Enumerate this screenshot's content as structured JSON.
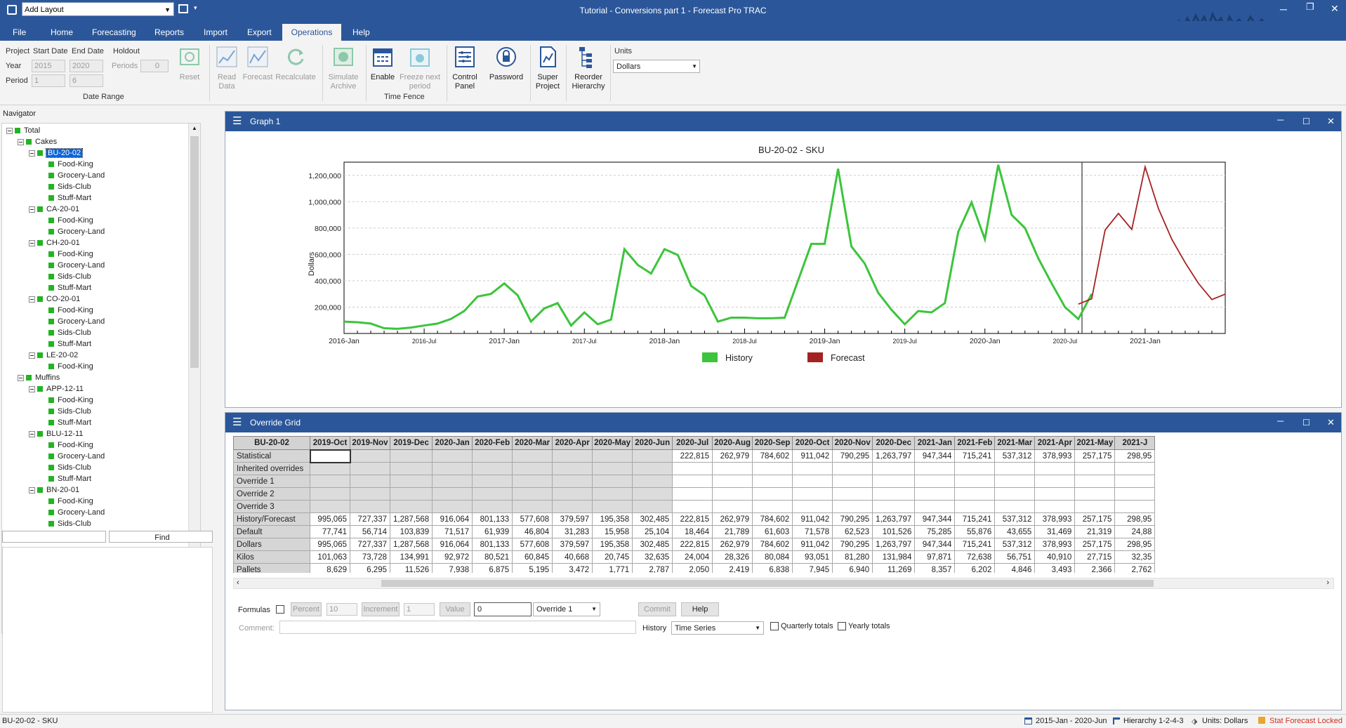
{
  "titlebar": {
    "layout_select": "Add Layout",
    "title": "Tutorial - Conversions part 1 - Forecast Pro TRAC"
  },
  "tabs": [
    "File",
    "Home",
    "Forecasting",
    "Reports",
    "Import",
    "Export",
    "Operations",
    "Help"
  ],
  "ribbon": {
    "project": "Project",
    "start_date": "Start Date",
    "end_date": "End Date",
    "holdout": "Holdout",
    "year": "Year",
    "period": "Period",
    "start_year": "2015",
    "end_year": "2020",
    "start_period": "1",
    "end_period": "6",
    "periods": "Periods",
    "periods_value": "0",
    "date_range": "Date Range",
    "time_fence": "Time Fence",
    "reset": "Reset",
    "read": "Read",
    "data": "Data",
    "forecast": "Forecast",
    "recalculate": "Recalculate",
    "simulate": "Simulate",
    "archive": "Archive",
    "enable": "Enable",
    "freeze": "Freeze next",
    "period_lbl": "period",
    "control": "Control",
    "panel": "Panel",
    "password": "Password",
    "super": "Super",
    "project2": "Project",
    "reorder": "Reorder",
    "hierarchy": "Hierarchy",
    "units": "Units",
    "units_value": "Dollars"
  },
  "navigator": {
    "title": "Navigator",
    "find": "Find",
    "nodes": [
      {
        "label": "Total",
        "level": 0,
        "exp": true
      },
      {
        "label": "Cakes",
        "level": 1,
        "exp": true
      },
      {
        "label": "BU-20-02",
        "level": 2,
        "exp": true,
        "sel": true
      },
      {
        "label": "Food-King",
        "level": 3
      },
      {
        "label": "Grocery-Land",
        "level": 3
      },
      {
        "label": "Sids-Club",
        "level": 3
      },
      {
        "label": "Stuff-Mart",
        "level": 3
      },
      {
        "label": "CA-20-01",
        "level": 2,
        "exp": true
      },
      {
        "label": "Food-King",
        "level": 3
      },
      {
        "label": "Grocery-Land",
        "level": 3
      },
      {
        "label": "CH-20-01",
        "level": 2,
        "exp": true
      },
      {
        "label": "Food-King",
        "level": 3
      },
      {
        "label": "Grocery-Land",
        "level": 3
      },
      {
        "label": "Sids-Club",
        "level": 3
      },
      {
        "label": "Stuff-Mart",
        "level": 3
      },
      {
        "label": "CO-20-01",
        "level": 2,
        "exp": true
      },
      {
        "label": "Food-King",
        "level": 3
      },
      {
        "label": "Grocery-Land",
        "level": 3
      },
      {
        "label": "Sids-Club",
        "level": 3
      },
      {
        "label": "Stuff-Mart",
        "level": 3
      },
      {
        "label": "LE-20-02",
        "level": 2,
        "exp": true
      },
      {
        "label": "Food-King",
        "level": 3
      },
      {
        "label": "Muffins",
        "level": 1,
        "exp": true
      },
      {
        "label": "APP-12-11",
        "level": 2,
        "exp": true
      },
      {
        "label": "Food-King",
        "level": 3
      },
      {
        "label": "Sids-Club",
        "level": 3
      },
      {
        "label": "Stuff-Mart",
        "level": 3
      },
      {
        "label": "BLU-12-11",
        "level": 2,
        "exp": true
      },
      {
        "label": "Food-King",
        "level": 3
      },
      {
        "label": "Grocery-Land",
        "level": 3
      },
      {
        "label": "Sids-Club",
        "level": 3
      },
      {
        "label": "Stuff-Mart",
        "level": 3
      },
      {
        "label": "BN-20-01",
        "level": 2,
        "exp": true
      },
      {
        "label": "Food-King",
        "level": 3
      },
      {
        "label": "Grocery-Land",
        "level": 3
      },
      {
        "label": "Sids-Club",
        "level": 3
      }
    ]
  },
  "graph": {
    "panel_title": "Graph 1"
  },
  "chart_data": {
    "type": "line",
    "title": "BU-20-02 - SKU",
    "ylabel": "Dollars",
    "ylim": [
      0,
      1300000
    ],
    "yticks": [
      "200,000",
      "400,000",
      "600,000",
      "800,000",
      "1,000,000",
      "1,200,000"
    ],
    "xticks": [
      "2016-Jan",
      "2016-Jul",
      "2017-Jan",
      "2017-Jul",
      "2018-Jan",
      "2018-Jul",
      "2019-Jan",
      "2019-Jul",
      "2020-Jan",
      "2020-Jul",
      "2021-Jan"
    ],
    "legend": [
      "History",
      "Forecast"
    ],
    "colors": {
      "history": "#3cc43c",
      "forecast": "#a52222"
    },
    "series": [
      {
        "name": "History",
        "start": "2016-Jan",
        "values": [
          90000,
          85000,
          75000,
          40000,
          35000,
          45000,
          60000,
          75000,
          110000,
          170000,
          280000,
          300000,
          380000,
          290000,
          90000,
          190000,
          230000,
          60000,
          160000,
          70000,
          105000,
          640000,
          520000,
          455000,
          640000,
          595000,
          360000,
          290000,
          90000,
          120000,
          120000,
          115000,
          115000,
          120000,
          400000,
          680000,
          680000,
          1250000,
          660000,
          530000,
          310000,
          180000,
          70000,
          170000,
          160000,
          230000,
          770000,
          995000,
          715000,
          1280000,
          900000,
          800000,
          570000,
          380000,
          200000,
          110000,
          300000
        ]
      },
      {
        "name": "Forecast",
        "start": "2020-Jul",
        "values": [
          222815,
          262979,
          784602,
          911042,
          790295,
          1263797,
          947344,
          715241,
          537312,
          378993,
          257175,
          298950
        ]
      }
    ]
  },
  "override": {
    "panel_title": "Override Grid",
    "corner": "BU-20-02",
    "columns": [
      "2019-Oct",
      "2019-Nov",
      "2019-Dec",
      "2020-Jan",
      "2020-Feb",
      "2020-Mar",
      "2020-Apr",
      "2020-May",
      "2020-Jun",
      "2020-Jul",
      "2020-Aug",
      "2020-Sep",
      "2020-Oct",
      "2020-Nov",
      "2020-Dec",
      "2021-Jan",
      "2021-Feb",
      "2021-Mar",
      "2021-Apr",
      "2021-May",
      "2021-J"
    ],
    "rows": [
      {
        "label": "Statistical",
        "cells": [
          "",
          "",
          "",
          "",
          "",
          "",
          "",
          "",
          "",
          "222,815",
          "262,979",
          "784,602",
          "911,042",
          "790,295",
          "1,263,797",
          "947,344",
          "715,241",
          "537,312",
          "378,993",
          "257,175",
          "298,95"
        ]
      },
      {
        "label": "Inherited overrides",
        "cells": [
          "",
          "",
          "",
          "",
          "",
          "",
          "",
          "",
          "",
          "",
          "",
          "",
          "",
          "",
          "",
          "",
          "",
          "",
          "",
          "",
          ""
        ]
      },
      {
        "label": "Override 1",
        "cells": [
          "",
          "",
          "",
          "",
          "",
          "",
          "",
          "",
          "",
          "",
          "",
          "",
          "",
          "",
          "",
          "",
          "",
          "",
          "",
          "",
          ""
        ]
      },
      {
        "label": "Override 2",
        "cells": [
          "",
          "",
          "",
          "",
          "",
          "",
          "",
          "",
          "",
          "",
          "",
          "",
          "",
          "",
          "",
          "",
          "",
          "",
          "",
          "",
          ""
        ]
      },
      {
        "label": "Override 3",
        "cells": [
          "",
          "",
          "",
          "",
          "",
          "",
          "",
          "",
          "",
          "",
          "",
          "",
          "",
          "",
          "",
          "",
          "",
          "",
          "",
          "",
          ""
        ]
      },
      {
        "label": "History/Forecast",
        "cells": [
          "995,065",
          "727,337",
          "1,287,568",
          "916,064",
          "801,133",
          "577,608",
          "379,597",
          "195,358",
          "302,485",
          "222,815",
          "262,979",
          "784,602",
          "911,042",
          "790,295",
          "1,263,797",
          "947,344",
          "715,241",
          "537,312",
          "378,993",
          "257,175",
          "298,95"
        ]
      },
      {
        "label": "Default",
        "cells": [
          "77,741",
          "56,714",
          "103,839",
          "71,517",
          "61,939",
          "46,804",
          "31,283",
          "15,958",
          "25,104",
          "18,464",
          "21,789",
          "61,603",
          "71,578",
          "62,523",
          "101,526",
          "75,285",
          "55,876",
          "43,655",
          "31,469",
          "21,319",
          "24,88"
        ]
      },
      {
        "label": "Dollars",
        "cells": [
          "995,065",
          "727,337",
          "1,287,568",
          "916,064",
          "801,133",
          "577,608",
          "379,597",
          "195,358",
          "302,485",
          "222,815",
          "262,979",
          "784,602",
          "911,042",
          "790,295",
          "1,263,797",
          "947,344",
          "715,241",
          "537,312",
          "378,993",
          "257,175",
          "298,95"
        ]
      },
      {
        "label": "Kilos",
        "cells": [
          "101,063",
          "73,728",
          "134,991",
          "92,972",
          "80,521",
          "60,845",
          "40,668",
          "20,745",
          "32,635",
          "24,004",
          "28,326",
          "80,084",
          "93,051",
          "81,280",
          "131,984",
          "97,871",
          "72,638",
          "56,751",
          "40,910",
          "27,715",
          "32,35"
        ]
      },
      {
        "label": "Pallets",
        "cells": [
          "8,629",
          "6,295",
          "11,526",
          "7,938",
          "6,875",
          "5,195",
          "3,472",
          "1,771",
          "2,787",
          "2,050",
          "2,419",
          "6,838",
          "7,945",
          "6,940",
          "11,269",
          "8,357",
          "6,202",
          "4,846",
          "3,493",
          "2,366",
          "2,762"
        ]
      }
    ]
  },
  "controls": {
    "formulas": "Formulas",
    "percent": "Percent",
    "percent_val": "10",
    "increment": "Increment",
    "increment_val": "1",
    "value": "Value",
    "value_input": "0",
    "override_sel": "Override 1",
    "commit": "Commit",
    "help": "Help",
    "comment": "Comment:",
    "history": "History",
    "history_sel": "Time Series",
    "quarterly": "Quarterly totals",
    "yearly": "Yearly totals"
  },
  "status": {
    "left": "BU-20-02 - SKU",
    "range": "2015-Jan - 2020-Jun",
    "hierarchy": "Hierarchy 1-2-4-3",
    "units": "Units: Dollars",
    "locked": "Stat Forecast Locked"
  }
}
